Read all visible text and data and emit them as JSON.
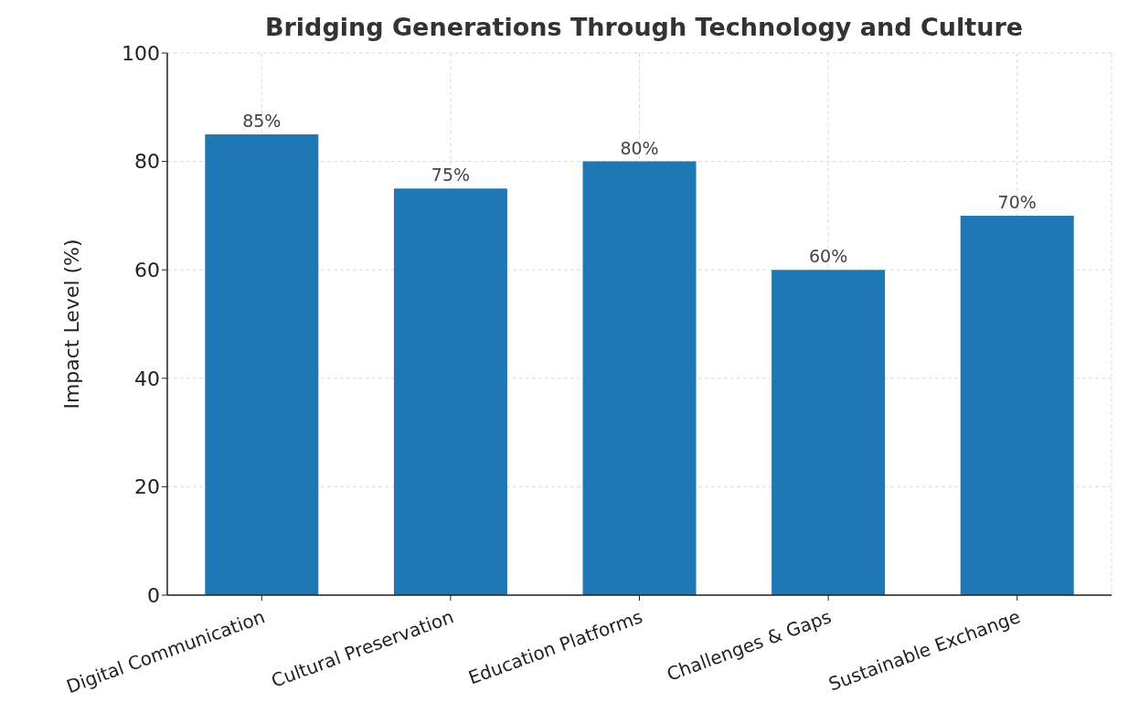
{
  "chart_data": {
    "type": "bar",
    "title": "Bridging Generations Through Technology and Culture",
    "ylabel": "Impact Level (%)",
    "categories": [
      "Digital Communication",
      "Cultural Preservation",
      "Education Platforms",
      "Challenges & Gaps",
      "Sustainable Exchange"
    ],
    "values": [
      85,
      75,
      80,
      60,
      70
    ],
    "value_labels": [
      "85%",
      "75%",
      "80%",
      "60%",
      "70%"
    ],
    "color": "#1f77b4",
    "ylim": [
      0,
      100
    ],
    "yticks": [
      0,
      20,
      40,
      60,
      80,
      100
    ],
    "grid": true
  }
}
